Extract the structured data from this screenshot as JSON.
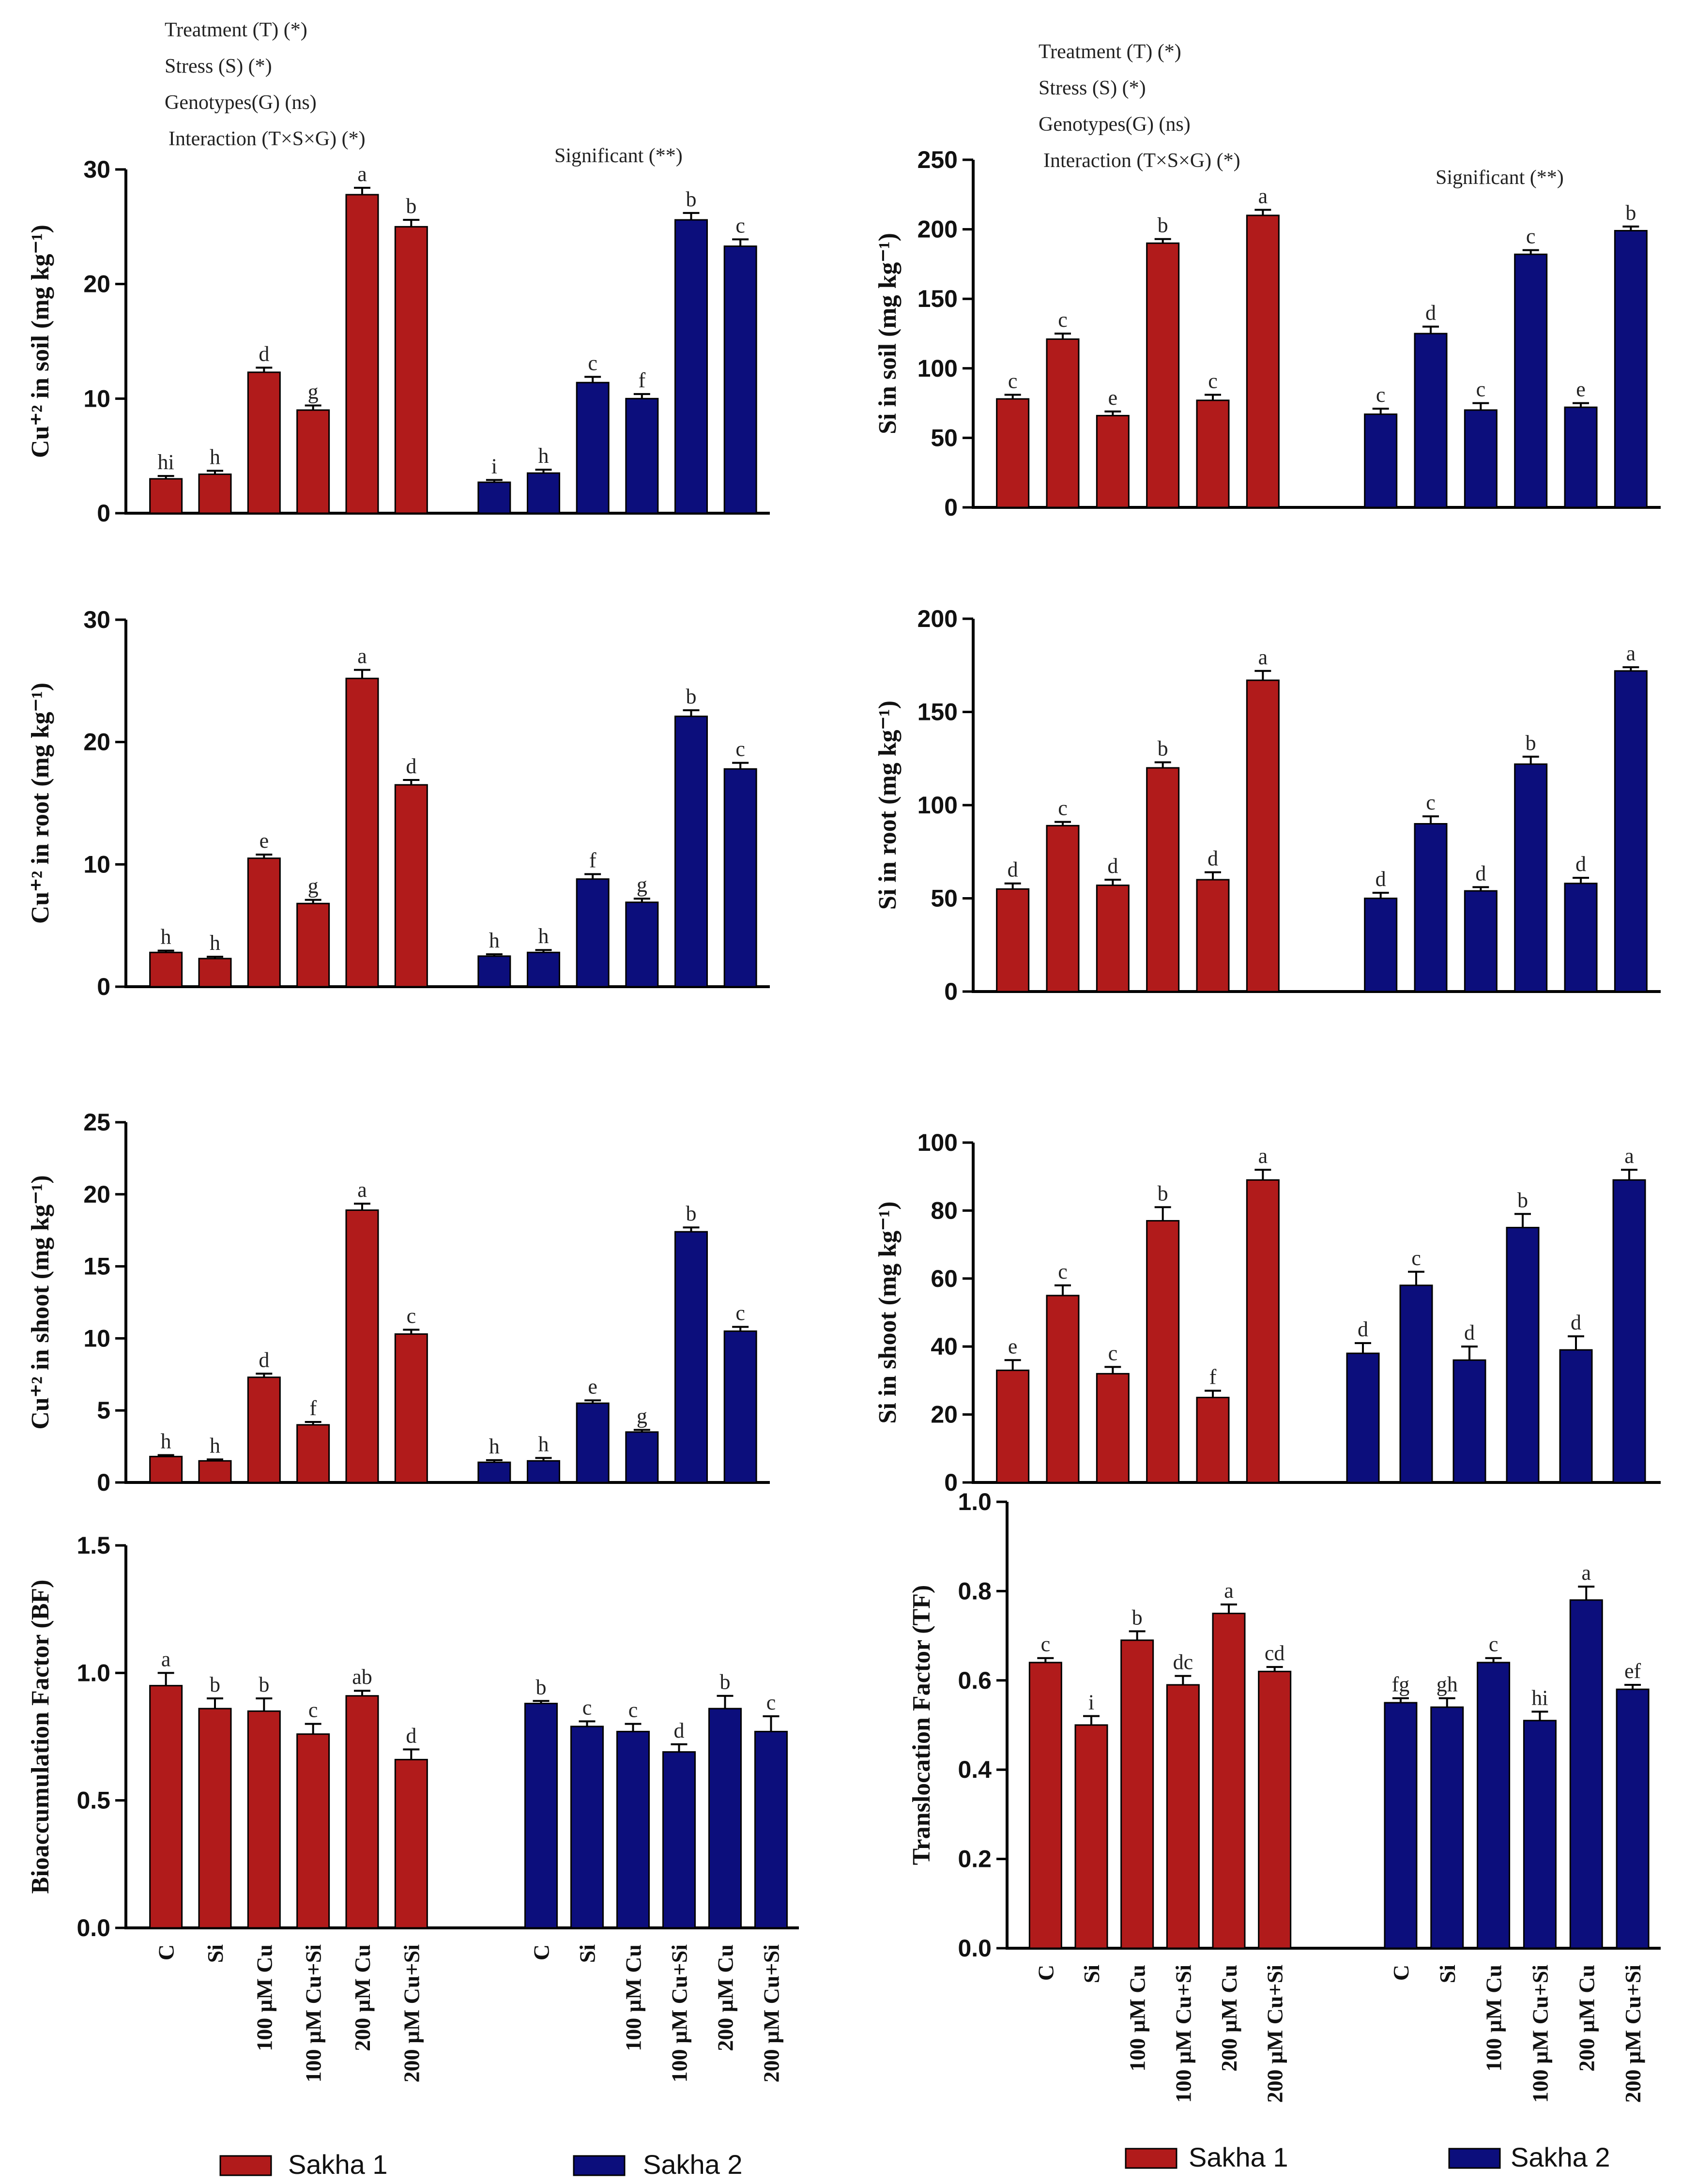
{
  "colors": {
    "sakha1": "#B11B1B",
    "sakha2": "#0C0E7C",
    "axis": "#000000"
  },
  "categories": [
    "C",
    "Si",
    "100 µM Cu",
    "100 µM Cu+Si",
    "200 µM Cu",
    "200 µM Cu+Si"
  ],
  "legend": {
    "series1": "Sakha 1",
    "series2": "Sakha 2"
  },
  "annotations": {
    "left": {
      "treatment": "Treatment (T) (*)",
      "stress": "Stress (S) (*)",
      "genotypes": "Genotypes(G) (ns)",
      "interaction": "Interaction (T×S×G) (*)",
      "significant": "Significant (**)"
    },
    "right": {
      "treatment": "Treatment (T) (*)",
      "stress": "Stress (S) (*)",
      "genotypes": "Genotypes(G) (ns)",
      "interaction": "Interaction (T×S×G) (*)",
      "significant": "Significant (**)"
    }
  },
  "chart_data": [
    {
      "id": "cu_soil",
      "type": "bar",
      "ylabel": "Cu⁺² in soil (mg kg⁻¹)",
      "ylim": [
        0,
        30
      ],
      "yticks": [
        0,
        10,
        20,
        30
      ],
      "series": [
        {
          "name": "Sakha 1",
          "values": [
            3.0,
            3.4,
            12.3,
            9.0,
            27.8,
            25.0
          ],
          "errors": [
            0.25,
            0.3,
            0.4,
            0.4,
            0.6,
            0.6
          ],
          "letters": [
            "hi",
            "h",
            "d",
            "g",
            "a",
            "b"
          ]
        },
        {
          "name": "Sakha 2",
          "values": [
            2.7,
            3.5,
            11.4,
            10.0,
            25.6,
            23.3
          ],
          "errors": [
            0.2,
            0.3,
            0.5,
            0.4,
            0.6,
            0.6
          ],
          "letters": [
            "i",
            "h",
            "c",
            "f",
            "b",
            "c"
          ]
        }
      ]
    },
    {
      "id": "si_soil",
      "type": "bar",
      "ylabel": "Si in soil (mg kg⁻¹)",
      "ylim": [
        0,
        250
      ],
      "yticks": [
        0,
        50,
        100,
        150,
        200,
        250
      ],
      "series": [
        {
          "name": "Sakha 1",
          "values": [
            78,
            121,
            66,
            190,
            77,
            210
          ],
          "errors": [
            3,
            4,
            3,
            3,
            4,
            4
          ],
          "letters": [
            "c",
            "c",
            "e",
            "b",
            "c",
            "a"
          ]
        },
        {
          "name": "Sakha 2",
          "values": [
            67,
            125,
            70,
            182,
            72,
            199
          ],
          "errors": [
            4,
            5,
            5,
            3,
            3,
            3
          ],
          "letters": [
            "c",
            "d",
            "c",
            "c",
            "e",
            "b"
          ]
        }
      ]
    },
    {
      "id": "cu_root",
      "type": "bar",
      "ylabel": "Cu⁺² in root (mg kg⁻¹)",
      "ylim": [
        0,
        30
      ],
      "yticks": [
        0,
        10,
        20,
        30
      ],
      "series": [
        {
          "name": "Sakha 1",
          "values": [
            2.8,
            2.3,
            10.5,
            6.8,
            25.2,
            16.5
          ],
          "errors": [
            0.15,
            0.15,
            0.3,
            0.3,
            0.7,
            0.4
          ],
          "letters": [
            "h",
            "h",
            "e",
            "g",
            "a",
            "d"
          ]
        },
        {
          "name": "Sakha 2",
          "values": [
            2.5,
            2.8,
            8.8,
            6.9,
            22.1,
            17.8
          ],
          "errors": [
            0.15,
            0.2,
            0.4,
            0.3,
            0.5,
            0.5
          ],
          "letters": [
            "h",
            "h",
            "f",
            "g",
            "b",
            "c"
          ]
        }
      ]
    },
    {
      "id": "si_root",
      "type": "bar",
      "ylabel": "Si in root (mg kg⁻¹)",
      "ylim": [
        0,
        200
      ],
      "yticks": [
        0,
        50,
        100,
        150,
        200
      ],
      "series": [
        {
          "name": "Sakha 1",
          "values": [
            55,
            89,
            57,
            120,
            60,
            167
          ],
          "errors": [
            3,
            2,
            3,
            3,
            4,
            5
          ],
          "letters": [
            "d",
            "c",
            "d",
            "b",
            "d",
            "a"
          ]
        },
        {
          "name": "Sakha 2",
          "values": [
            50,
            90,
            54,
            122,
            58,
            172
          ],
          "errors": [
            3,
            4,
            2,
            4,
            3,
            2
          ],
          "letters": [
            "d",
            "c",
            "d",
            "b",
            "d",
            "a"
          ]
        }
      ]
    },
    {
      "id": "cu_shoot",
      "type": "bar",
      "ylabel": "Cu⁺² in shoot (mg kg⁻¹)",
      "ylim": [
        0,
        25
      ],
      "yticks": [
        0,
        5,
        10,
        15,
        20,
        25
      ],
      "series": [
        {
          "name": "Sakha 1",
          "values": [
            1.8,
            1.5,
            7.3,
            4.0,
            18.9,
            10.3
          ],
          "errors": [
            0.1,
            0.1,
            0.25,
            0.2,
            0.45,
            0.3
          ],
          "letters": [
            "h",
            "h",
            "d",
            "f",
            "a",
            "c"
          ]
        },
        {
          "name": "Sakha 2",
          "values": [
            1.4,
            1.5,
            5.5,
            3.5,
            17.4,
            10.5
          ],
          "errors": [
            0.15,
            0.2,
            0.2,
            0.15,
            0.3,
            0.3
          ],
          "letters": [
            "h",
            "h",
            "e",
            "g",
            "b",
            "c"
          ]
        }
      ]
    },
    {
      "id": "si_shoot",
      "type": "bar",
      "ylabel": "Si in shoot (mg kg⁻¹)",
      "ylim": [
        0,
        100
      ],
      "yticks": [
        0,
        20,
        40,
        60,
        80,
        100
      ],
      "series": [
        {
          "name": "Sakha 1",
          "values": [
            33,
            55,
            32,
            77,
            25,
            89
          ],
          "errors": [
            3,
            3,
            2,
            4,
            2,
            3
          ],
          "letters": [
            "e",
            "c",
            "c",
            "b",
            "f",
            "a"
          ]
        },
        {
          "name": "Sakha 2",
          "values": [
            38,
            58,
            36,
            75,
            39,
            89
          ],
          "errors": [
            3,
            4,
            4,
            4,
            4,
            3
          ],
          "letters": [
            "d",
            "c",
            "d",
            "b",
            "d",
            "a"
          ]
        }
      ]
    },
    {
      "id": "bf",
      "type": "bar",
      "ylabel": "Bioaccumulation Factor (BF)",
      "ylim": [
        0,
        1.5
      ],
      "yticks": [
        "0.0",
        "0.5",
        "1.0",
        "1.5"
      ],
      "series": [
        {
          "name": "Sakha 1",
          "values": [
            0.95,
            0.86,
            0.85,
            0.76,
            0.91,
            0.66
          ],
          "errors": [
            0.05,
            0.04,
            0.05,
            0.04,
            0.02,
            0.04
          ],
          "letters": [
            "a",
            "b",
            "b",
            "c",
            "ab",
            "d"
          ]
        },
        {
          "name": "Sakha 2",
          "values": [
            0.88,
            0.79,
            0.77,
            0.69,
            0.86,
            0.77
          ],
          "errors": [
            0.01,
            0.02,
            0.03,
            0.03,
            0.05,
            0.06
          ],
          "letters": [
            "b",
            "c",
            "c",
            "d",
            "b",
            "c"
          ]
        }
      ]
    },
    {
      "id": "tf",
      "type": "bar",
      "ylabel": "Translocation Factor (TF)",
      "ylim": [
        0,
        1.0
      ],
      "yticks": [
        "0.0",
        "0.2",
        "0.4",
        "0.6",
        "0.8",
        "1.0"
      ],
      "series": [
        {
          "name": "Sakha 1",
          "values": [
            0.64,
            0.5,
            0.69,
            0.59,
            0.75,
            0.62
          ],
          "errors": [
            0.01,
            0.02,
            0.02,
            0.02,
            0.02,
            0.01
          ],
          "letters": [
            "c",
            "i",
            "b",
            "dc",
            "a",
            "cd"
          ]
        },
        {
          "name": "Sakha 2",
          "values": [
            0.55,
            0.54,
            0.64,
            0.51,
            0.78,
            0.58
          ],
          "errors": [
            0.01,
            0.02,
            0.01,
            0.02,
            0.03,
            0.01
          ],
          "letters": [
            "fg",
            "gh",
            "c",
            "hi",
            "a",
            "ef"
          ]
        }
      ]
    }
  ]
}
